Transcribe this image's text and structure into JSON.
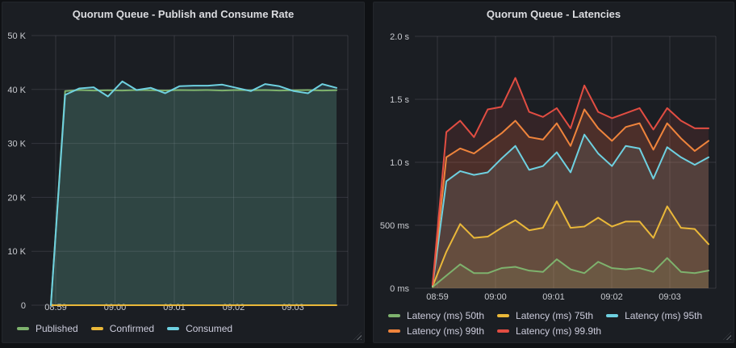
{
  "chart_data": [
    {
      "type": "line",
      "title": "Quorum Queue - Publish and Consume Rate",
      "x_tick_labels": [
        "08:59",
        "09:00",
        "09:01",
        "09:02",
        "09:03"
      ],
      "y_ticks": [
        {
          "value": 0,
          "label": "0"
        },
        {
          "value": 10000,
          "label": "10 K"
        },
        {
          "value": 20000,
          "label": "20 K"
        },
        {
          "value": 30000,
          "label": "30 K"
        },
        {
          "value": 40000,
          "label": "40 K"
        },
        {
          "value": 50000,
          "label": "50 K"
        }
      ],
      "ylim": [
        0,
        50000
      ],
      "grid": true,
      "legend_position": "bottom",
      "series": [
        {
          "name": "Published",
          "color": "#7EB26D",
          "values": [
            0,
            39700,
            39900,
            39800,
            39850,
            39800,
            39900,
            39850,
            39800,
            39900,
            39850,
            39900,
            39800,
            39900,
            39850,
            39900,
            39800,
            39850,
            39900,
            39800,
            39850
          ]
        },
        {
          "name": "Confirmed",
          "color": "#EAB839",
          "values": [
            0,
            0,
            0,
            0,
            0,
            0,
            0,
            0,
            0,
            0,
            0,
            0,
            0,
            0,
            0,
            0,
            0,
            0,
            0,
            0,
            0
          ]
        },
        {
          "name": "Consumed",
          "color": "#6ED0E0",
          "values": [
            0,
            39000,
            40200,
            40400,
            38700,
            41500,
            39900,
            40300,
            39300,
            40600,
            40700,
            40700,
            40900,
            40300,
            39700,
            41000,
            40600,
            39700,
            39300,
            41000,
            40300
          ]
        }
      ]
    },
    {
      "type": "line",
      "title": "Quorum Queue - Latencies",
      "x_tick_labels": [
        "08:59",
        "09:00",
        "09:01",
        "09:02",
        "09:03"
      ],
      "y_ticks": [
        {
          "value": 0,
          "label": "0 ms"
        },
        {
          "value": 500,
          "label": "500 ms"
        },
        {
          "value": 1000,
          "label": "1.0 s"
        },
        {
          "value": 1500,
          "label": "1.5 s"
        },
        {
          "value": 2000,
          "label": "2.0 s"
        }
      ],
      "ylim": [
        0,
        2000
      ],
      "grid": true,
      "legend_position": "bottom",
      "series": [
        {
          "name": "Latency (ms) 50th",
          "color": "#7EB26D",
          "values": [
            10,
            100,
            190,
            120,
            120,
            160,
            170,
            140,
            130,
            230,
            150,
            120,
            210,
            160,
            150,
            160,
            130,
            240,
            130,
            120,
            140
          ]
        },
        {
          "name": "Latency (ms) 75th",
          "color": "#EAB839",
          "values": [
            15,
            290,
            510,
            400,
            410,
            480,
            540,
            460,
            480,
            690,
            480,
            490,
            560,
            490,
            530,
            530,
            400,
            650,
            480,
            470,
            350
          ]
        },
        {
          "name": "Latency (ms) 95th",
          "color": "#6ED0E0",
          "values": [
            20,
            850,
            930,
            900,
            920,
            1030,
            1130,
            940,
            970,
            1080,
            920,
            1220,
            1070,
            970,
            1130,
            1110,
            870,
            1120,
            1040,
            980,
            1040
          ]
        },
        {
          "name": "Latency (ms) 99th",
          "color": "#EF843C",
          "values": [
            25,
            1040,
            1110,
            1070,
            1150,
            1230,
            1330,
            1200,
            1180,
            1310,
            1130,
            1420,
            1270,
            1170,
            1280,
            1310,
            1100,
            1310,
            1190,
            1090,
            1170
          ]
        },
        {
          "name": "Latency (ms) 99.9th",
          "color": "#E24D42",
          "values": [
            30,
            1240,
            1330,
            1200,
            1420,
            1440,
            1670,
            1400,
            1360,
            1430,
            1270,
            1610,
            1400,
            1350,
            1390,
            1430,
            1260,
            1430,
            1330,
            1270,
            1270
          ]
        }
      ]
    }
  ]
}
